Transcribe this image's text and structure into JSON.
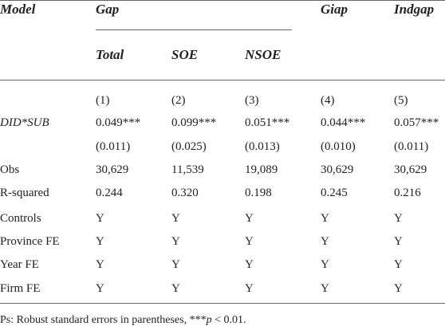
{
  "header": {
    "model": "Model",
    "group": "Gap",
    "giap": "Giap",
    "indgap": "Indgap",
    "sub": [
      "Total",
      "SOE",
      "NSOE"
    ]
  },
  "table": {
    "column_numbers": [
      "(1)",
      "(2)",
      "(3)",
      "(4)",
      "(5)"
    ],
    "rows": [
      {
        "label": "DID*SUB",
        "cells": [
          "0.049***",
          "0.099***",
          "0.051***",
          "0.044***",
          "0.057***"
        ]
      },
      {
        "cells": [
          "(0.011)",
          "(0.025)",
          "(0.013)",
          "(0.010)",
          "(0.011)"
        ]
      },
      {
        "label": "Obs",
        "cells": [
          "30,629",
          "11,539",
          "19,089",
          "30,629",
          "30,629"
        ]
      },
      {
        "label": "R-squared",
        "cells": [
          "0.244",
          "0.320",
          "0.198",
          "0.245",
          "0.216"
        ]
      },
      {
        "label": "Controls",
        "cells": [
          "Y",
          "Y",
          "Y",
          "Y",
          "Y"
        ]
      },
      {
        "label": "Province FE",
        "cells": [
          "Y",
          "Y",
          "Y",
          "Y",
          "Y"
        ]
      },
      {
        "label": "Year FE",
        "cells": [
          "Y",
          "Y",
          "Y",
          "Y",
          "Y"
        ]
      },
      {
        "label": "Firm FE",
        "cells": [
          "Y",
          "Y",
          "Y",
          "Y",
          "Y"
        ]
      }
    ]
  },
  "footnote": {
    "before": "Ps: Robust standard errors in parentheses, ***",
    "italic": "p",
    "after": " < 0.01."
  }
}
